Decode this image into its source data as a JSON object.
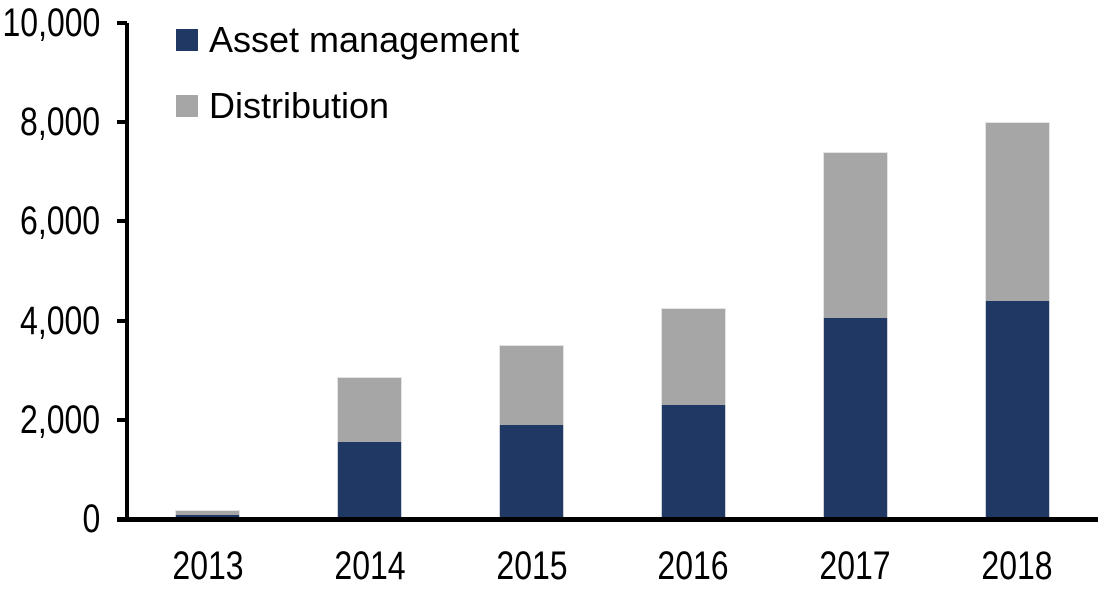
{
  "chart_data": {
    "type": "bar",
    "stacked": true,
    "title": "",
    "xlabel": "",
    "ylabel": "",
    "categories": [
      "2013",
      "2014",
      "2015",
      "2016",
      "2017",
      "2018"
    ],
    "series": [
      {
        "name": "Asset management",
        "color": "#1f3864",
        "values": [
          75,
          1550,
          1900,
          2300,
          4050,
          4400
        ]
      },
      {
        "name": "Distribution",
        "color": "#a6a6a6",
        "values": [
          100,
          1320,
          1600,
          1950,
          3350,
          3600
        ]
      }
    ],
    "stack_totals": [
      175,
      2870,
      3500,
      4250,
      7400,
      8000
    ],
    "ylim": [
      0,
      10000
    ],
    "ytick_interval": 2000,
    "yticks": [
      0,
      2000,
      4000,
      6000,
      8000,
      10000
    ],
    "ytick_labels": [
      "0",
      "2,000",
      "4,000",
      "6,000",
      "8,000",
      "10,000"
    ],
    "grid": false,
    "legend_position": "top-left",
    "axis_color": "#000000",
    "text_color": "#000000",
    "background_color": "#ffffff"
  }
}
